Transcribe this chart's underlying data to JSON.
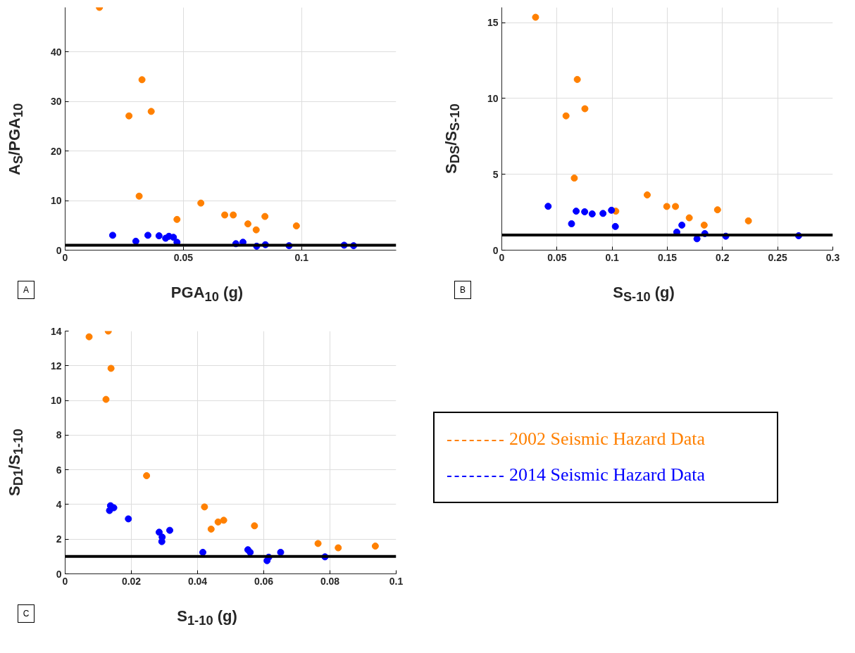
{
  "chart_data": [
    {
      "type": "scatter",
      "xlabel": "PGA$_{10}$ (g)",
      "ylabel": "A$_{S}$/PGA$_{10}$",
      "annotations": [
        "A"
      ],
      "xlim": [
        0,
        0.14
      ],
      "ylim": [
        0,
        49
      ],
      "xticks": [
        0,
        0.05,
        0.1
      ],
      "yticks": [
        0,
        10,
        20,
        30,
        40
      ],
      "grid": true,
      "marker": "circle",
      "ref_lines": [
        {
          "axis": "y",
          "value": 1,
          "color": "#000000"
        }
      ],
      "series": [
        {
          "color": "#ff8000",
          "x": [
            0.0145,
            0.0325,
            0.027,
            0.0364,
            0.0313,
            0.0473,
            0.0574,
            0.0675,
            0.0711,
            0.0773,
            0.0808,
            0.0845,
            0.0978
          ],
          "values": [
            49,
            34.4,
            27.1,
            28.0,
            10.9,
            6.2,
            9.5,
            7.1,
            7.1,
            5.3,
            4.1,
            6.8,
            4.9
          ]
        },
        {
          "color": "#0000ff",
          "x": [
            0.0201,
            0.0299,
            0.035,
            0.0397,
            0.0425,
            0.0439,
            0.0458,
            0.0473,
            0.0722,
            0.0752,
            0.081,
            0.0847,
            0.0947,
            0.118,
            0.122
          ],
          "values": [
            3.0,
            1.8,
            3.0,
            2.9,
            2.4,
            2.8,
            2.6,
            1.6,
            1.3,
            1.6,
            0.8,
            1.1,
            0.9,
            1.0,
            0.9
          ]
        }
      ]
    },
    {
      "type": "scatter",
      "xlabel": "S$_{S-10}$ (g)",
      "ylabel": "S$_{DS}$/S$_{S-10}$",
      "annotations": [
        "B"
      ],
      "xlim": [
        0,
        0.3
      ],
      "ylim": [
        0,
        16
      ],
      "xticks": [
        0,
        0.05,
        0.1,
        0.15,
        0.2,
        0.25,
        0.3
      ],
      "yticks": [
        0,
        5,
        10,
        15
      ],
      "grid": true,
      "marker": "circle",
      "ref_lines": [
        {
          "axis": "y",
          "value": 1,
          "color": "#000000"
        }
      ],
      "series": [
        {
          "color": "#ff8000",
          "x": [
            0.0306,
            0.0684,
            0.0582,
            0.0753,
            0.0657,
            0.1033,
            0.1318,
            0.1495,
            0.1574,
            0.1699,
            0.1834,
            0.1955,
            0.2235
          ],
          "values": [
            15.35,
            11.25,
            8.85,
            9.32,
            4.75,
            2.57,
            3.64,
            2.88,
            2.88,
            2.13,
            1.65,
            2.66,
            1.93
          ]
        },
        {
          "color": "#0000ff",
          "x": [
            0.042,
            0.0632,
            0.0674,
            0.0751,
            0.0819,
            0.0917,
            0.0994,
            0.1008,
            0.1029,
            0.1586,
            0.1632,
            0.1769,
            0.184,
            0.203,
            0.2672,
            0.269
          ],
          "values": [
            2.89,
            1.74,
            2.57,
            2.53,
            2.39,
            2.42,
            2.63,
            null,
            1.56,
            1.19,
            1.65,
            0.75,
            1.09,
            0.92,
            null,
            0.95
          ]
        }
      ]
    },
    {
      "type": "scatter",
      "xlabel": "S$_{1-10}$ (g)",
      "ylabel": "S$_{D1}$/S$_{1-10}$",
      "annotations": [
        "C"
      ],
      "xlim": [
        0,
        0.1
      ],
      "ylim": [
        0,
        14
      ],
      "xticks": [
        0,
        0.02,
        0.04,
        0.06,
        0.08,
        0.1
      ],
      "yticks": [
        0,
        2,
        4,
        6,
        8,
        10,
        12,
        14
      ],
      "grid": true,
      "marker": "circle",
      "legend": "right",
      "ref_lines": [
        {
          "axis": "y",
          "value": 1,
          "color": "#000000"
        }
      ],
      "series": [
        {
          "name": "2002 Seismic Hazard Data",
          "color": "#ff8000",
          "x": [
            0.00724,
            0.01303,
            0.01386,
            0.01234,
            0.0246,
            0.0421,
            0.0441,
            0.0462,
            0.0479,
            0.0572,
            0.0764,
            0.0825,
            0.0937
          ],
          "values": [
            13.67,
            14.0,
            11.85,
            10.06,
            5.66,
            3.86,
            2.58,
            2.99,
            3.09,
            2.77,
            1.75,
            1.5,
            1.6
          ]
        },
        {
          "name": "2014 Seismic Hazard Data",
          "color": "#0000ff",
          "x": [
            0.0137,
            0.0147,
            0.0134,
            0.0191,
            0.0284,
            0.0293,
            0.0292,
            0.0316,
            0.0416,
            0.0552,
            0.0559,
            0.061,
            0.0615,
            0.0651,
            0.0785
          ],
          "values": [
            3.93,
            3.81,
            3.65,
            3.17,
            2.4,
            2.12,
            1.86,
            2.51,
            1.24,
            1.39,
            1.24,
            0.76,
            0.96,
            1.24,
            0.98
          ]
        }
      ]
    }
  ]
}
